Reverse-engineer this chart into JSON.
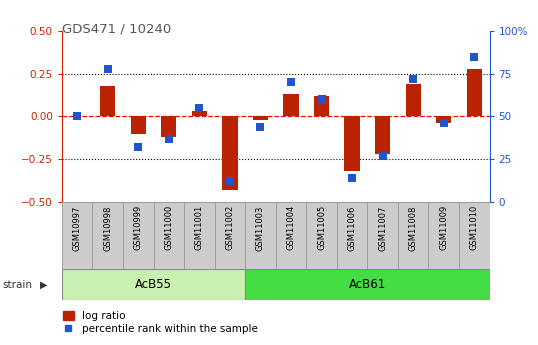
{
  "title": "GDS471 / 10240",
  "samples": [
    "GSM10997",
    "GSM10998",
    "GSM10999",
    "GSM11000",
    "GSM11001",
    "GSM11002",
    "GSM11003",
    "GSM11004",
    "GSM11005",
    "GSM11006",
    "GSM11007",
    "GSM11008",
    "GSM11009",
    "GSM11010"
  ],
  "log_ratio": [
    0.0,
    0.18,
    -0.1,
    -0.12,
    0.03,
    -0.43,
    -0.02,
    0.13,
    0.12,
    -0.32,
    -0.22,
    0.19,
    -0.04,
    0.28
  ],
  "percentile_rank": [
    50,
    78,
    32,
    37,
    55,
    12,
    44,
    70,
    60,
    14,
    27,
    72,
    46,
    85
  ],
  "strain_groups": [
    {
      "label": "AcB55",
      "start": 0,
      "end": 5,
      "color": "#c8f0b0"
    },
    {
      "label": "AcB61",
      "start": 6,
      "end": 13,
      "color": "#44dd44"
    }
  ],
  "ylim_left": [
    -0.5,
    0.5
  ],
  "ylim_right": [
    0,
    100
  ],
  "yticks_left": [
    -0.5,
    -0.25,
    0.0,
    0.25,
    0.5
  ],
  "yticks_right": [
    0,
    25,
    50,
    75,
    100
  ],
  "hlines": [
    0.25,
    -0.25
  ],
  "red_hline": 0.0,
  "bar_color": "#bb2200",
  "dot_color": "#2255cc",
  "bar_width": 0.5,
  "dot_size": 40,
  "bg_color": "#ffffff",
  "plot_bg": "#ffffff",
  "legend_bar_label": "log ratio",
  "legend_dot_label": "percentile rank within the sample",
  "strain_label": "strain",
  "strain_label_color": "#333333",
  "title_color": "#555555",
  "left_axis_color": "#cc2200",
  "right_axis_color": "#2255cc",
  "sample_box_color": "#cccccc",
  "sample_box_edge": "#999999"
}
